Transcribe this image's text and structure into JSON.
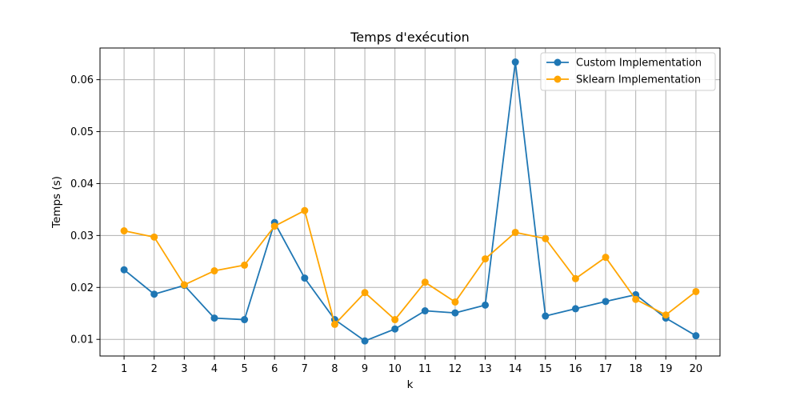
{
  "chart_data": {
    "type": "line",
    "title": "Temps d'exécution",
    "xlabel": "k",
    "ylabel": "Temps (s)",
    "x": [
      1,
      2,
      3,
      4,
      5,
      6,
      7,
      8,
      9,
      10,
      11,
      12,
      13,
      14,
      15,
      16,
      17,
      18,
      19,
      20
    ],
    "xlim": [
      0.2,
      20.8
    ],
    "ylim": [
      0.0068,
      0.0661
    ],
    "yticks": [
      0.01,
      0.02,
      0.03,
      0.04,
      0.05,
      0.06
    ],
    "ytick_labels": [
      "0.01",
      "0.02",
      "0.03",
      "0.04",
      "0.05",
      "0.06"
    ],
    "grid": true,
    "legend_position": "top-right",
    "series": [
      {
        "name": "Custom Implementation",
        "color": "#1f77b4",
        "values": [
          0.0234,
          0.0187,
          0.0204,
          0.0141,
          0.0138,
          0.0325,
          0.0218,
          0.0138,
          0.0097,
          0.012,
          0.0155,
          0.0151,
          0.0166,
          0.0634,
          0.0145,
          0.0159,
          0.0173,
          0.0186,
          0.0141,
          0.0107
        ]
      },
      {
        "name": "Sklearn Implementation",
        "color": "#ffa500",
        "values": [
          0.0309,
          0.0297,
          0.0205,
          0.0232,
          0.0243,
          0.0318,
          0.0348,
          0.0129,
          0.019,
          0.0138,
          0.021,
          0.0172,
          0.0255,
          0.0306,
          0.0294,
          0.0217,
          0.0258,
          0.0177,
          0.0147,
          0.0192
        ]
      }
    ]
  }
}
